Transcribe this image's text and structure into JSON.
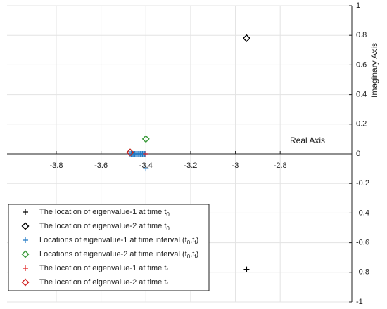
{
  "chart_data": {
    "type": "scatter",
    "xlabel": "Real Axis",
    "ylabel": "Imaginary Axis",
    "xlim": [
      -4.02,
      -2.48
    ],
    "ylim": [
      -1,
      1
    ],
    "xticks": [
      -3.8,
      -3.6,
      -3.4,
      -3.2,
      -3,
      -2.8
    ],
    "yticks": [
      -1,
      -0.8,
      -0.6,
      -0.4,
      -0.2,
      0,
      0.2,
      0.4,
      0.6,
      0.8,
      1
    ],
    "grid": true,
    "legend": "lower-left",
    "series": [
      {
        "name": [
          "The location of eigenvalue-1 at time t",
          "0"
        ],
        "marker": "plus",
        "color": "#000000",
        "x": [
          -2.95
        ],
        "values": [
          -0.78
        ]
      },
      {
        "name": [
          "The location of eigenvalue-2 at time t",
          "0"
        ],
        "marker": "diamond",
        "color": "#000000",
        "x": [
          -2.95
        ],
        "values": [
          0.78
        ]
      },
      {
        "name": [
          "Locations of eigenvalue-1 at time interval (t",
          "0",
          ",t",
          "f",
          ")"
        ],
        "marker": "plus",
        "color": "#1f77c4",
        "x": [
          -3.47,
          -3.465,
          -3.46,
          -3.455,
          -3.45,
          -3.445,
          -3.44,
          -3.435,
          -3.43,
          -3.425,
          -3.42,
          -3.415,
          -3.41,
          -3.405,
          -3.4,
          -3.4
        ],
        "values": [
          0,
          0,
          0,
          0,
          0,
          0,
          0,
          0,
          0,
          0,
          0,
          0,
          0,
          0,
          0,
          -0.1
        ]
      },
      {
        "name": [
          "Locations of eigenvalue-2 at time interval (t",
          "0",
          ",t",
          "f",
          ")"
        ],
        "marker": "diamond",
        "color": "#3a9a3a",
        "x": [
          -3.47,
          -3.4
        ],
        "values": [
          0.01,
          0.1
        ]
      },
      {
        "name": [
          "The location of eigenvalue-1 at time t",
          "f"
        ],
        "marker": "plus",
        "color": "#e02020",
        "x": [
          -3.4
        ],
        "values": [
          0
        ]
      },
      {
        "name": [
          "The location of eigenvalue-2 at time t",
          "f"
        ],
        "marker": "diamond",
        "color": "#d02020",
        "x": [
          -3.47
        ],
        "values": [
          0.01
        ]
      }
    ]
  }
}
